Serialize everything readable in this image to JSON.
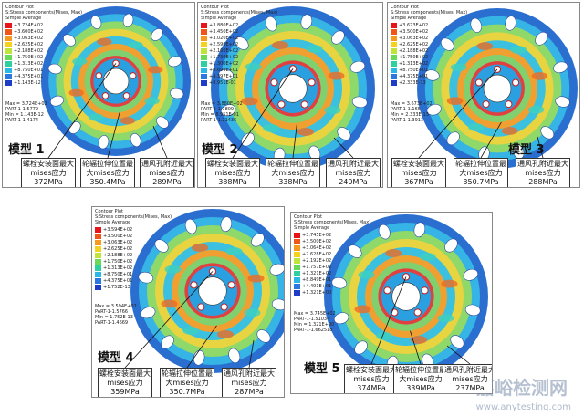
{
  "panels": [
    {
      "header": [
        "Contour Plot",
        "S:Stress components(Mises, Max)",
        "Simple Average"
      ],
      "legend": [
        "+3.724E+02",
        "+3.600E+02",
        "+3.063E+02",
        "+2.625E+02",
        "+2.188E+02",
        "+1.750E+02",
        "+1.313E+02",
        "+8.750E+01",
        "+4.375E+01",
        "+1.143E-12"
      ],
      "stats": [
        "Max = 3.724E+02",
        "PART-1-1.5779",
        "Min = 1.143E-12",
        "PART-1-1.4174"
      ],
      "model": "模型 1",
      "callouts": [
        "螺栓安装面最大mises应力372MPa",
        "轮辐拉伸位置最大mises应力350.4MPa",
        "通风孔附近最大mises应力289MPa"
      ]
    },
    {
      "header": [
        "Contour Plot",
        "S:Stress components(Mises, Max)",
        "Simple Average"
      ],
      "legend": [
        "+3.880E+02",
        "+3.450E+02",
        "+3.020E+02",
        "+2.590E+02",
        "+2.160E+02",
        "+1.730E+02",
        "+1.300E+02",
        "+8.699E+01",
        "+4.397E+01",
        "+8.951E-01"
      ],
      "stats": [
        "Max = 3.880E+02",
        "PART-1-1.7809",
        "Min = 8.951E-01",
        "PART-1-1.21435"
      ],
      "model": "模型 2",
      "callouts": [
        "螺栓安装面最大mises应力388MPa",
        "轮辐拉伸位置最大mises应力338MPa",
        "通风孔附近最大mises应力240MPa"
      ]
    },
    {
      "header": [
        "Contour Plot",
        "S:Stress components(Mises, Max)",
        "Simple Average"
      ],
      "legend": [
        "+3.673E+02",
        "+3.500E+02",
        "+3.063E+02",
        "+2.625E+02",
        "+2.188E+02",
        "+1.750E+02",
        "+1.313E+02",
        "+8.750E+01",
        "+4.375E+01",
        "+2.333E-13"
      ],
      "stats": [
        "Max = 3.673E+02",
        "PART-1-1.165",
        "Min = 2.333E-13",
        "PART-1-1.3911"
      ],
      "model": "模型 3",
      "callouts": [
        "螺栓安装面最大mises应力367MPa",
        "轮辐拉伸位置最大mises应力350.7MPa",
        "通风孔附近最大mises应力288MPa"
      ]
    },
    {
      "header": [
        "Contour Plot",
        "S:Stress components(Mises, Max)",
        "Simple Average"
      ],
      "legend": [
        "+3.594E+02",
        "+3.500E+02",
        "+3.063E+02",
        "+2.625E+02",
        "+2.188E+02",
        "+1.750E+02",
        "+1.313E+02",
        "+8.750E+01",
        "+4.375E+01",
        "+1.752E-13"
      ],
      "stats": [
        "Max = 3.594E+02",
        "PART-1-1.5766",
        "Min = 1.752E-13",
        "PART-1-1.4669"
      ],
      "model": "模型 4",
      "callouts": [
        "螺栓安装面最大mises应力359MPa",
        "轮辐拉伸位置最大mises应力350.7MPa",
        "通风孔附近最大mises应力287MPa"
      ]
    },
    {
      "header": [
        "Contour Plot",
        "S:Stress components(Mises, Max)",
        "Simple Average"
      ],
      "legend": [
        "+3.745E+02",
        "+3.500E+02",
        "+3.064E+02",
        "+2.628E+02",
        "+2.192E+02",
        "+1.757E+02",
        "+1.321E+02",
        "+8.849E+01",
        "+4.491E+01",
        "+1.321E+00"
      ],
      "stats": [
        "Max = 3.745E+02",
        "PART-1-1.51034",
        "Min = 1.321E+00",
        "PART-1-1.662518"
      ],
      "model": "模型 5",
      "callouts": [
        "螺栓安装面最大mises应力374MPa",
        "轮辐拉伸位置最大mises应力339MPa",
        "通风孔附近最大mises应力237MPa"
      ]
    }
  ],
  "watermark": {
    "brand": "嘉峪检测网",
    "site": "www.anytesting.com"
  }
}
